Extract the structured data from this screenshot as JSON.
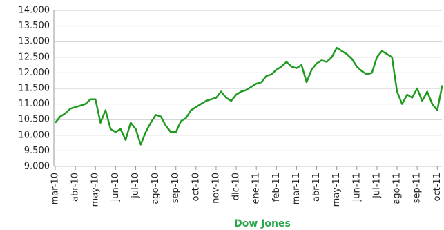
{
  "chart_data": {
    "type": "line",
    "title": "Dow Jones",
    "categories": [
      "mar-10",
      null,
      null,
      null,
      "abr-10",
      null,
      null,
      null,
      "may-10",
      null,
      null,
      null,
      "jun-10",
      null,
      null,
      null,
      "jul-10",
      null,
      null,
      null,
      "ago-10",
      null,
      null,
      null,
      "sep-10",
      null,
      null,
      null,
      "oct-10",
      null,
      null,
      null,
      "nov-10",
      null,
      null,
      null,
      "dic-10",
      null,
      null,
      null,
      "ene-11",
      null,
      null,
      null,
      "feb-11",
      null,
      null,
      null,
      "mar-11",
      null,
      null,
      null,
      "abr-11",
      null,
      null,
      null,
      "may-11",
      null,
      null,
      null,
      "jun-11",
      null,
      null,
      null,
      "jul-11",
      null,
      null,
      null,
      "ago-11",
      null,
      null,
      null,
      "sep-11",
      null,
      null,
      null,
      "oct-11",
      null
    ],
    "series": [
      {
        "name": "Dow Jones",
        "color": "#1f9a1f",
        "values": [
          10400,
          10600,
          10700,
          10850,
          10900,
          10950,
          11000,
          11150,
          11150,
          10400,
          10800,
          10200,
          10100,
          10200,
          9850,
          10400,
          10200,
          9700,
          10100,
          10400,
          10650,
          10600,
          10300,
          10100,
          10100,
          10450,
          10550,
          10800,
          10900,
          11000,
          11100,
          11150,
          11200,
          11400,
          11200,
          11100,
          11300,
          11400,
          11450,
          11550,
          11650,
          11700,
          11900,
          11950,
          12100,
          12200,
          12350,
          12200,
          12150,
          12250,
          11700,
          12100,
          12300,
          12400,
          12350,
          12500,
          12800,
          12700,
          12600,
          12450,
          12200,
          12050,
          11950,
          12000,
          12500,
          12700,
          12600,
          12500,
          11400,
          11000,
          11300,
          11200,
          11500,
          11100,
          11400,
          11000,
          10800,
          11600
        ]
      }
    ],
    "ylim": [
      9000,
      14000
    ],
    "yticks": [
      {
        "value": 9000,
        "label": "9.000"
      },
      {
        "value": 9500,
        "label": "9.500"
      },
      {
        "value": 10000,
        "label": "10.000"
      },
      {
        "value": 10500,
        "label": "10.500"
      },
      {
        "value": 11000,
        "label": "11.000"
      },
      {
        "value": 11500,
        "label": "11.500"
      },
      {
        "value": 12000,
        "label": "12.000"
      },
      {
        "value": 12500,
        "label": "12.500"
      },
      {
        "value": 13000,
        "label": "13.000"
      },
      {
        "value": 13500,
        "label": "13.500"
      },
      {
        "value": 14000,
        "label": "14.000"
      }
    ],
    "grid": true
  }
}
